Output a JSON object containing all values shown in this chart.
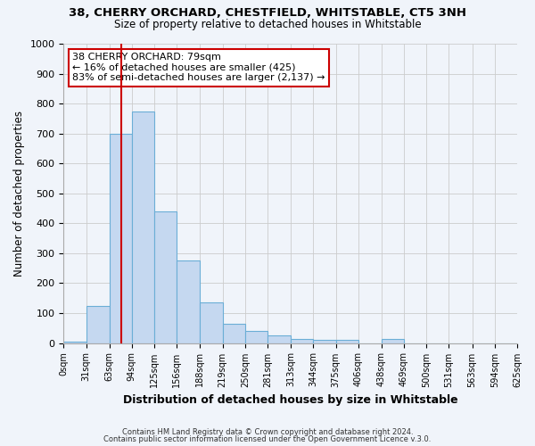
{
  "title1": "38, CHERRY ORCHARD, CHESTFIELD, WHITSTABLE, CT5 3NH",
  "title2": "Size of property relative to detached houses in Whitstable",
  "xlabel": "Distribution of detached houses by size in Whitstable",
  "ylabel": "Number of detached properties",
  "bin_edges": [
    0,
    31,
    63,
    94,
    125,
    156,
    188,
    219,
    250,
    281,
    313,
    344,
    375,
    406,
    438,
    469,
    500,
    531,
    563,
    594,
    625
  ],
  "bar_heights": [
    5,
    125,
    700,
    775,
    440,
    275,
    135,
    65,
    40,
    25,
    15,
    10,
    10,
    0,
    15,
    0,
    0,
    0,
    0,
    0
  ],
  "bar_color": "#c5d8f0",
  "bar_edge_color": "#6baed6",
  "vline_x": 79,
  "vline_color": "#cc0000",
  "ylim": [
    0,
    1000
  ],
  "yticks": [
    0,
    100,
    200,
    300,
    400,
    500,
    600,
    700,
    800,
    900,
    1000
  ],
  "annotation_title": "38 CHERRY ORCHARD: 79sqm",
  "annotation_line1": "← 16% of detached houses are smaller (425)",
  "annotation_line2": "83% of semi-detached houses are larger (2,137) →",
  "annotation_box_color": "#ffffff",
  "annotation_box_edge": "#cc0000",
  "grid_color": "#cccccc",
  "footer1": "Contains HM Land Registry data © Crown copyright and database right 2024.",
  "footer2": "Contains public sector information licensed under the Open Government Licence v.3.0.",
  "background_color": "#f0f4fa"
}
